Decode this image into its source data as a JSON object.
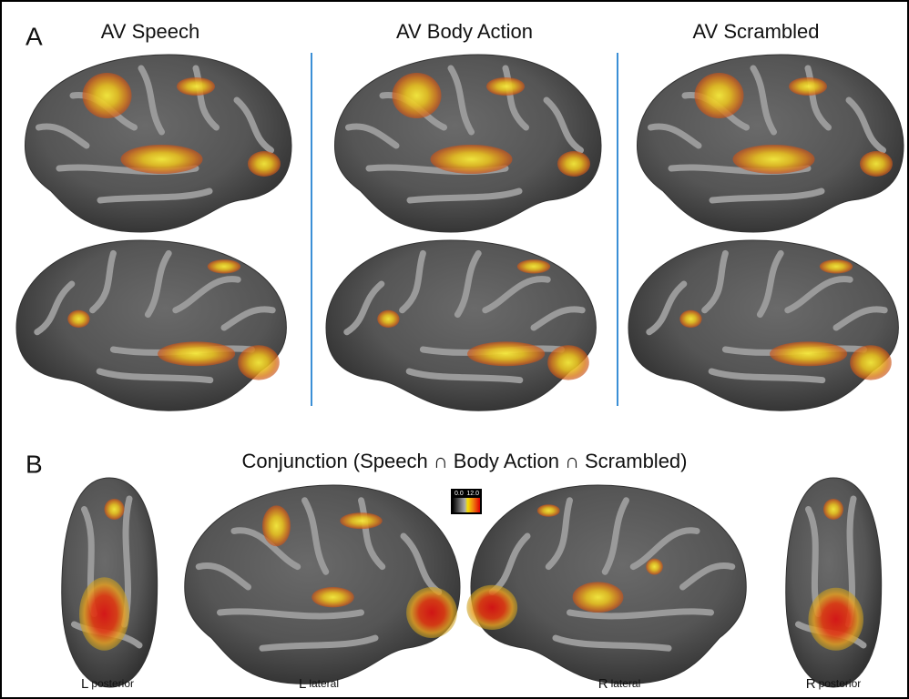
{
  "panel_a": {
    "label": "A",
    "columns": [
      "AV Speech",
      "AV Body Action",
      "AV Scrambled"
    ]
  },
  "panel_b": {
    "label": "B",
    "title": "Conjunction  (Speech ∩ Body Action ∩ Scrambled)",
    "colorbar": {
      "min": "0.0",
      "max": "12.0"
    },
    "views": [
      {
        "hemisphere": "L",
        "view": "posterior"
      },
      {
        "hemisphere": "L",
        "view": "lateral"
      },
      {
        "hemisphere": "R",
        "view": "lateral"
      },
      {
        "hemisphere": "R",
        "view": "posterior"
      }
    ]
  }
}
